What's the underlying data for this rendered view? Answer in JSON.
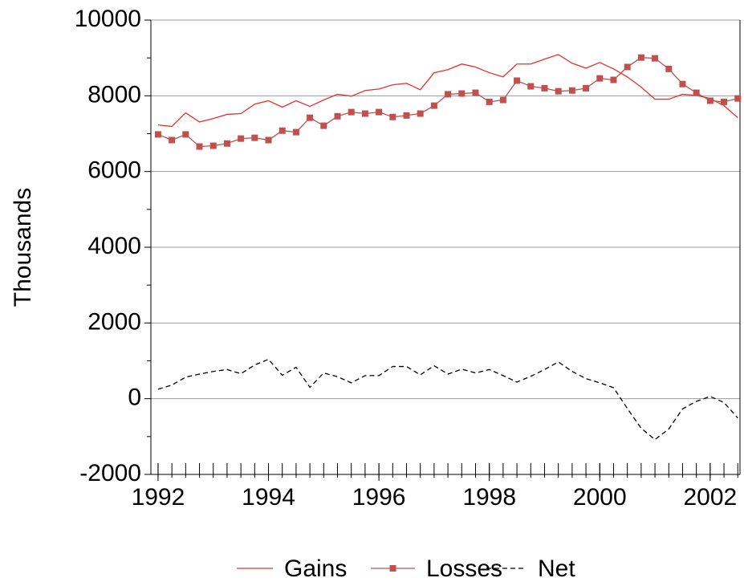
{
  "chart_data": {
    "type": "line",
    "ylabel": "Thousands",
    "x": [
      1992,
      1992.25,
      1992.5,
      1992.75,
      1993,
      1993.25,
      1993.5,
      1993.75,
      1994,
      1994.25,
      1994.5,
      1994.75,
      1995,
      1995.25,
      1995.5,
      1995.75,
      1996,
      1996.25,
      1996.5,
      1996.75,
      1997,
      1997.25,
      1997.5,
      1997.75,
      1998,
      1998.25,
      1998.5,
      1998.75,
      1999,
      1999.25,
      1999.5,
      1999.75,
      2000,
      2000.25,
      2000.5,
      2000.75,
      2001,
      2001.25,
      2001.5,
      2001.75,
      2002,
      2002.25,
      2002.5
    ],
    "series": [
      {
        "name": "Gains",
        "color": "#e8302a",
        "marker": "none",
        "dash": "solid",
        "values": [
          7230,
          7190,
          7550,
          7310,
          7400,
          7510,
          7530,
          7780,
          7870,
          7700,
          7870,
          7720,
          7890,
          8040,
          7990,
          8140,
          8180,
          8290,
          8330,
          8160,
          8610,
          8690,
          8840,
          8760,
          8610,
          8500,
          8840,
          8840,
          8970,
          9090,
          8860,
          8730,
          8880,
          8710,
          8500,
          8230,
          7910,
          7910,
          8040,
          8010,
          7930,
          7740,
          7420
        ]
      },
      {
        "name": "Losses",
        "color": "#c0504d",
        "marker": "square",
        "dash": "solid",
        "values": [
          6980,
          6830,
          6980,
          6660,
          6680,
          6740,
          6870,
          6890,
          6830,
          7080,
          7040,
          7420,
          7210,
          7460,
          7570,
          7530,
          7570,
          7440,
          7480,
          7530,
          7740,
          8040,
          8060,
          8080,
          7840,
          7890,
          8400,
          8250,
          8200,
          8120,
          8140,
          8200,
          8460,
          8420,
          8760,
          9010,
          8990,
          8710,
          8310,
          8080,
          7870,
          7840,
          7930
        ]
      },
      {
        "name": "Net",
        "color": "#000000",
        "marker": "none",
        "dash": "dashed",
        "values": [
          250,
          360,
          570,
          650,
          720,
          770,
          660,
          890,
          1040,
          620,
          830,
          300,
          680,
          580,
          420,
          610,
          610,
          850,
          850,
          630,
          870,
          650,
          780,
          680,
          770,
          610,
          440,
          590,
          770,
          970,
          720,
          530,
          420,
          290,
          -260,
          -780,
          -1080,
          -800,
          -270,
          -70,
          60,
          -100,
          -510
        ]
      }
    ],
    "xlim": [
      1991.87,
      2002.54
    ],
    "xticks": [
      1992,
      1994,
      1996,
      1998,
      2000,
      2002
    ],
    "ylim": [
      -2000,
      10000
    ],
    "yticks": [
      -2000,
      0,
      2000,
      4000,
      6000,
      8000,
      10000
    ],
    "yminorticks": [
      -1000,
      1000,
      3000,
      5000,
      7000,
      9000
    ],
    "grid": true,
    "legend": "bottom"
  }
}
